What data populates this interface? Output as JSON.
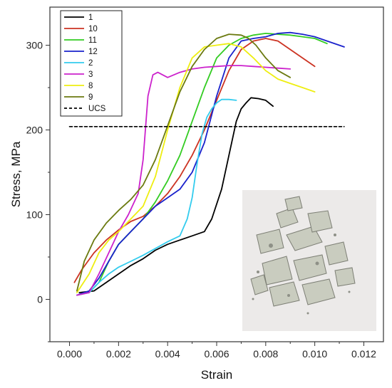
{
  "chart_data": {
    "type": "line",
    "title": "",
    "xlabel": "Strain",
    "ylabel": "Stress, MPa",
    "xlim": [
      -0.0008,
      0.0128
    ],
    "ylim": [
      -50,
      345
    ],
    "xticks": [
      0.0,
      0.002,
      0.004,
      0.006,
      0.008,
      0.01,
      0.012
    ],
    "xtick_labels": [
      "0.000",
      "0.002",
      "0.004",
      "0.006",
      "0.008",
      "0.010",
      "0.012"
    ],
    "yticks": [
      0,
      100,
      200,
      300
    ],
    "ytick_labels": [
      "0",
      "100",
      "200",
      "300"
    ],
    "grid": false,
    "legend_position": "top-left",
    "inset": "photograph of crushed rock fragments",
    "series": [
      {
        "name": "1",
        "color": "#000000",
        "dash": "solid",
        "x": [
          0.0004,
          0.001,
          0.0015,
          0.002,
          0.0025,
          0.003,
          0.0035,
          0.004,
          0.0045,
          0.005,
          0.0055,
          0.0058,
          0.0062,
          0.0065,
          0.0068,
          0.007,
          0.0072,
          0.0074,
          0.0077,
          0.008,
          0.0083
        ],
        "y": [
          8,
          10,
          20,
          30,
          40,
          48,
          58,
          65,
          70,
          75,
          80,
          95,
          130,
          170,
          210,
          225,
          232,
          238,
          237,
          235,
          228
        ]
      },
      {
        "name": "10",
        "color": "#cc3322",
        "dash": "solid",
        "x": [
          0.0002,
          0.0005,
          0.001,
          0.0015,
          0.002,
          0.0025,
          0.003,
          0.0035,
          0.004,
          0.0045,
          0.005,
          0.0055,
          0.006,
          0.0065,
          0.007,
          0.0075,
          0.008,
          0.0085,
          0.009,
          0.0095,
          0.01
        ],
        "y": [
          20,
          35,
          55,
          70,
          82,
          92,
          98,
          110,
          125,
          145,
          170,
          200,
          235,
          270,
          295,
          305,
          308,
          305,
          295,
          285,
          275
        ]
      },
      {
        "name": "11",
        "color": "#33cc22",
        "dash": "solid",
        "x": [
          0.0003,
          0.0008,
          0.0012,
          0.0016,
          0.002,
          0.0025,
          0.003,
          0.0035,
          0.004,
          0.0045,
          0.005,
          0.0055,
          0.006,
          0.0065,
          0.007,
          0.0075,
          0.008,
          0.0085,
          0.009,
          0.0095,
          0.01,
          0.0105
        ],
        "y": [
          5,
          8,
          20,
          45,
          65,
          80,
          95,
          115,
          140,
          170,
          210,
          250,
          285,
          300,
          308,
          312,
          314,
          313,
          312,
          310,
          308,
          302
        ]
      },
      {
        "name": "12",
        "color": "#1a22cc",
        "dash": "solid",
        "x": [
          0.0003,
          0.0008,
          0.0012,
          0.0016,
          0.002,
          0.0025,
          0.003,
          0.0035,
          0.004,
          0.0045,
          0.005,
          0.0055,
          0.006,
          0.0065,
          0.007,
          0.0075,
          0.008,
          0.0085,
          0.009,
          0.0095,
          0.01,
          0.0105,
          0.0112
        ],
        "y": [
          5,
          10,
          25,
          45,
          65,
          80,
          95,
          110,
          120,
          130,
          150,
          185,
          240,
          285,
          305,
          308,
          310,
          314,
          315,
          313,
          310,
          305,
          298
        ]
      },
      {
        "name": "2",
        "color": "#33ccee",
        "dash": "solid",
        "x": [
          0.0003,
          0.0008,
          0.0012,
          0.0016,
          0.002,
          0.0025,
          0.003,
          0.0035,
          0.004,
          0.0045,
          0.0048,
          0.005,
          0.0052,
          0.0054,
          0.0056,
          0.0058,
          0.006,
          0.0062,
          0.0065,
          0.0068
        ],
        "y": [
          5,
          8,
          20,
          30,
          38,
          45,
          52,
          60,
          68,
          75,
          95,
          120,
          160,
          195,
          215,
          225,
          232,
          236,
          236,
          235
        ]
      },
      {
        "name": "3",
        "color": "#cc22cc",
        "dash": "solid",
        "x": [
          0.0003,
          0.0008,
          0.0012,
          0.0016,
          0.002,
          0.0024,
          0.0028,
          0.003,
          0.0032,
          0.0034,
          0.0036,
          0.004,
          0.0045,
          0.005,
          0.0055,
          0.006,
          0.0065,
          0.007,
          0.0075,
          0.008,
          0.0085,
          0.009
        ],
        "y": [
          5,
          8,
          30,
          55,
          80,
          100,
          125,
          165,
          240,
          265,
          268,
          262,
          268,
          272,
          274,
          275,
          276,
          276,
          275,
          274,
          273,
          272
        ]
      },
      {
        "name": "8",
        "color": "#eeee11",
        "dash": "solid",
        "x": [
          0.0003,
          0.0008,
          0.0012,
          0.0016,
          0.002,
          0.0025,
          0.003,
          0.0035,
          0.004,
          0.0045,
          0.005,
          0.0055,
          0.006,
          0.0065,
          0.007,
          0.0075,
          0.008,
          0.0085,
          0.009,
          0.0095,
          0.01
        ],
        "y": [
          8,
          30,
          55,
          70,
          80,
          95,
          110,
          145,
          200,
          250,
          285,
          298,
          300,
          302,
          298,
          285,
          270,
          260,
          255,
          250,
          245
        ]
      },
      {
        "name": "9",
        "color": "#6b7a10",
        "dash": "solid",
        "x": [
          0.0003,
          0.0006,
          0.001,
          0.0015,
          0.002,
          0.0025,
          0.003,
          0.0035,
          0.004,
          0.0045,
          0.005,
          0.0055,
          0.006,
          0.0065,
          0.007,
          0.0073,
          0.0076,
          0.008,
          0.0085,
          0.009
        ],
        "y": [
          10,
          45,
          70,
          90,
          105,
          118,
          135,
          165,
          205,
          245,
          275,
          295,
          308,
          313,
          312,
          308,
          300,
          285,
          270,
          262
        ]
      },
      {
        "name": "UCS",
        "color": "#000000",
        "dash": "dashed",
        "x": [
          0.0,
          0.0112
        ],
        "y": [
          204,
          204
        ]
      }
    ]
  }
}
